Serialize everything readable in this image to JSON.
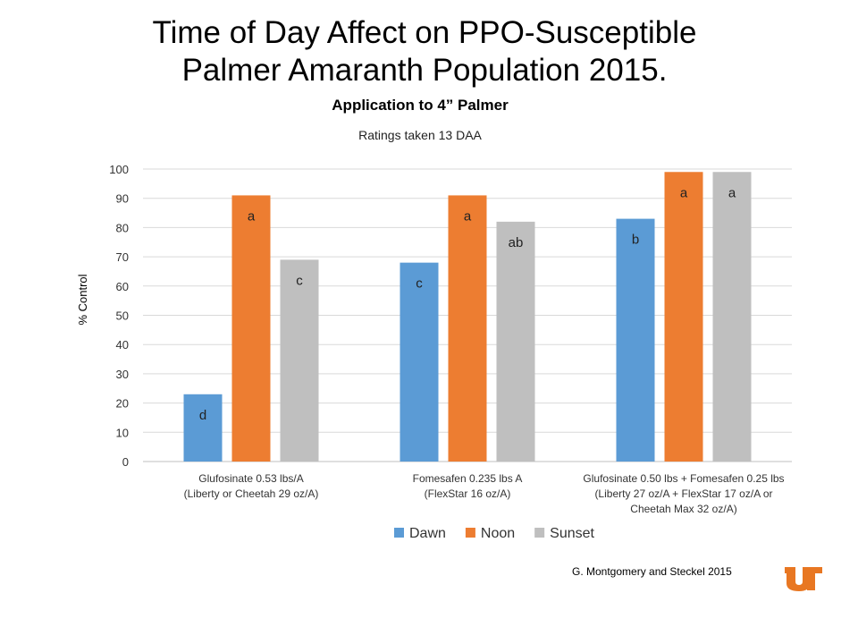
{
  "slide": {
    "title_line1": "Time of Day Affect on PPO-Susceptible",
    "title_line2": "Palmer Amaranth Population 2015.",
    "credit": "G. Montgomery and Steckel 2015",
    "logo_text": "UT"
  },
  "chart_data": {
    "type": "bar",
    "title": "Application to 4” Palmer",
    "subtitle": "Ratings taken 13 DAA",
    "ylabel": "% Control",
    "xlabel": "",
    "ylim": [
      0,
      100
    ],
    "yticks": [
      0,
      10,
      20,
      30,
      40,
      50,
      60,
      70,
      80,
      90,
      100
    ],
    "grid": true,
    "legend_position": "bottom",
    "categories": [
      [
        "Glufosinate 0.53 lbs/A",
        "(Liberty or Cheetah 29 oz/A)"
      ],
      [
        "Fomesafen 0.235 lbs A",
        "(FlexStar 16 oz/A)"
      ],
      [
        "Glufosinate 0.50 lbs + Fomesafen 0.25 lbs",
        "(Liberty 27 oz/A + FlexStar  17 oz/A or",
        "Cheetah Max 32 oz/A)"
      ]
    ],
    "series": [
      {
        "name": "Dawn",
        "color": "#5b9bd5",
        "values": [
          23,
          68,
          83
        ],
        "letters": [
          "d",
          "c",
          "b"
        ]
      },
      {
        "name": "Noon",
        "color": "#ed7d31",
        "values": [
          91,
          91,
          99
        ],
        "letters": [
          "a",
          "a",
          "a"
        ]
      },
      {
        "name": "Sunset",
        "color": "#bfbfbf",
        "values": [
          69,
          82,
          99
        ],
        "letters": [
          "c",
          "ab",
          "a"
        ]
      }
    ]
  }
}
